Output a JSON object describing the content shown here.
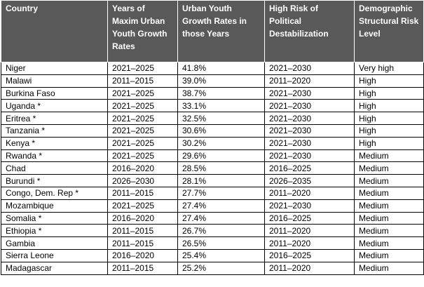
{
  "table": {
    "headers": [
      "Country",
      "Years of Maxim Urban Youth Growth Rates",
      "Urban Youth Growth Rates in those Years",
      "High Risk of Political Destabilization",
      "Demographic Structural Risk Level"
    ],
    "rows": [
      [
        "Niger",
        "2021–2025",
        "41.8%",
        "2021–2030",
        "Very high"
      ],
      [
        "Malawi",
        "2011–2015",
        "39.0%",
        "2011–2020",
        "High"
      ],
      [
        "Burkina Faso",
        "2021–2025",
        "38.7%",
        "2021–2030",
        "High"
      ],
      [
        "Uganda *",
        "2021–2025",
        "33.1%",
        "2021–2030",
        "High"
      ],
      [
        "Eritrea *",
        "2021–2025",
        "32.5%",
        "2021–2030",
        "High"
      ],
      [
        "Tanzania *",
        "2021–2025",
        "30.6%",
        "2021–2030",
        "High"
      ],
      [
        "Kenya *",
        "2021–2025",
        "30.2%",
        "2021–2030",
        "High"
      ],
      [
        "Rwanda *",
        "2021–2025",
        "29.6%",
        "2021–2030",
        "Medium"
      ],
      [
        "Chad",
        "2016–2020",
        "28.5%",
        "2016–2025",
        "Medium"
      ],
      [
        "Burundi *",
        "2026–2030",
        "28.1%",
        "2026–2035",
        "Medium"
      ],
      [
        "Congo, Dem. Rep *",
        "2011–2015",
        "27.7%",
        "2011–2020",
        "Medium"
      ],
      [
        "Mozambique",
        "2021–2025",
        "27.4%",
        "2021–2030",
        "Medium"
      ],
      [
        "Somalia *",
        "2016–2020",
        "27.4%",
        "2016–2025",
        "Medium"
      ],
      [
        "Ethiopia *",
        "2011–2015",
        "26.7%",
        "2011–2020",
        "Medium"
      ],
      [
        "Gambia",
        "2011–2015",
        "26.5%",
        "2011–2020",
        "Medium"
      ],
      [
        "Sierra Leone",
        "2016–2020",
        "25.4%",
        "2016–2025",
        "Medium"
      ],
      [
        "Madagascar",
        "2011–2015",
        "25.2%",
        "2011–2020",
        "Medium"
      ]
    ]
  }
}
